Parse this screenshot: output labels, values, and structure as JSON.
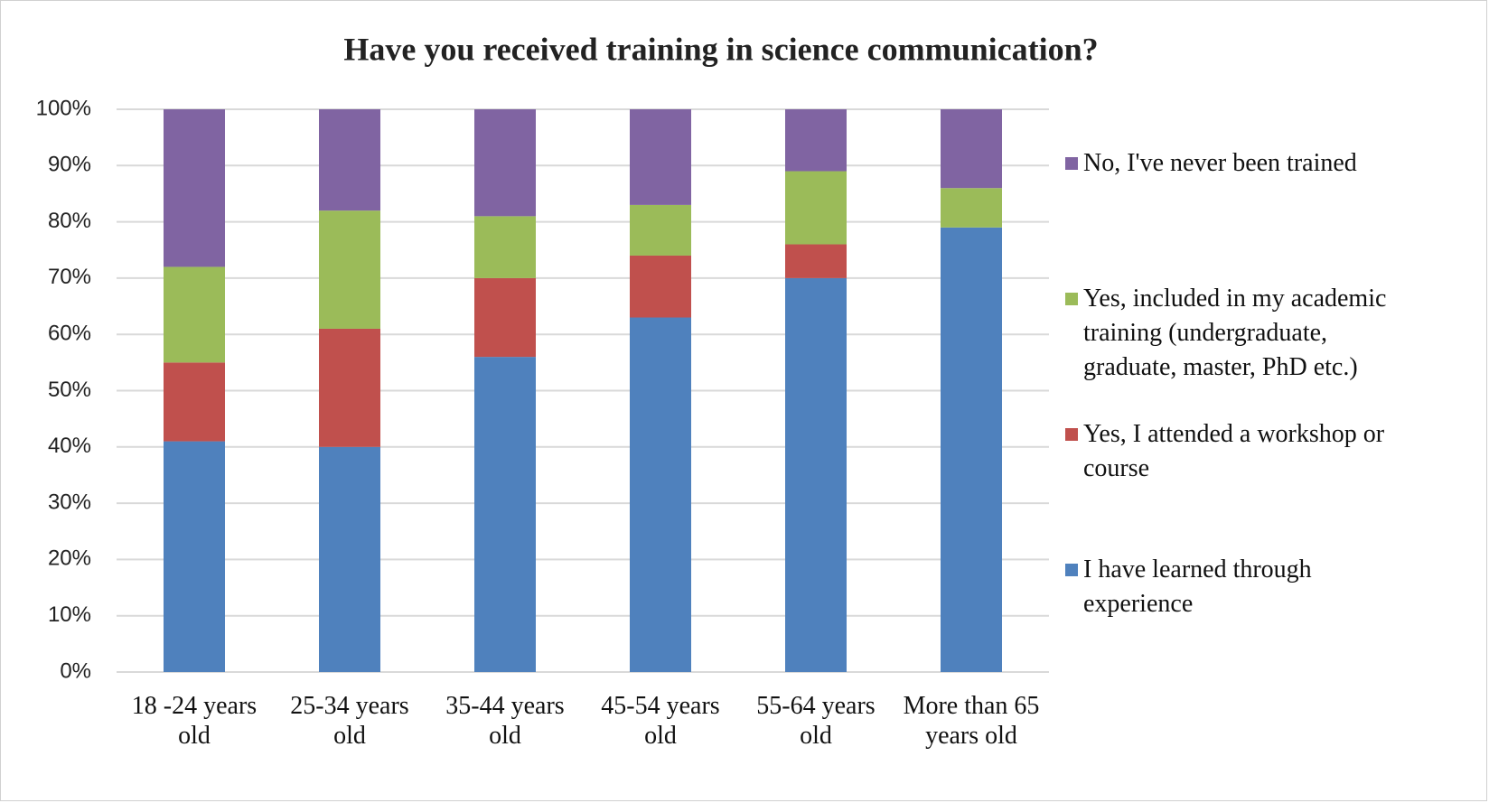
{
  "chart_data": {
    "type": "stacked_bar",
    "title": "Have you received training in science communication?",
    "categories": [
      "18 -24 years old",
      "25-34 years old",
      "35-44 years old",
      "45-54 years old",
      "55-64 years old",
      "More than 65 years old"
    ],
    "series": [
      {
        "name": "I have learned through experience",
        "color": "#4f81bd",
        "values": [
          41,
          40,
          56,
          63,
          70,
          79
        ]
      },
      {
        "name": "Yes, I attended a workshop or course",
        "color": "#c0504d",
        "values": [
          14,
          21,
          14,
          11,
          6,
          0
        ]
      },
      {
        "name": "Yes, included in my academic training (undergraduate, graduate, master, PhD etc.)",
        "color": "#9bbb59",
        "values": [
          17,
          21,
          11,
          9,
          13,
          7
        ]
      },
      {
        "name": "No, I've never been trained",
        "color": "#8064a2",
        "values": [
          28,
          18,
          19,
          17,
          11,
          14
        ]
      }
    ],
    "ylim": [
      0,
      100
    ],
    "yticks": [
      {
        "value": 0,
        "label": "0%"
      },
      {
        "value": 10,
        "label": "10%"
      },
      {
        "value": 20,
        "label": "20%"
      },
      {
        "value": 30,
        "label": "30%"
      },
      {
        "value": 40,
        "label": "40%"
      },
      {
        "value": 50,
        "label": "50%"
      },
      {
        "value": 60,
        "label": "60%"
      },
      {
        "value": 70,
        "label": "70%"
      },
      {
        "value": 80,
        "label": "80%"
      },
      {
        "value": 90,
        "label": "90%"
      },
      {
        "value": 100,
        "label": "100%"
      }
    ],
    "grid": true,
    "legend": "right"
  }
}
